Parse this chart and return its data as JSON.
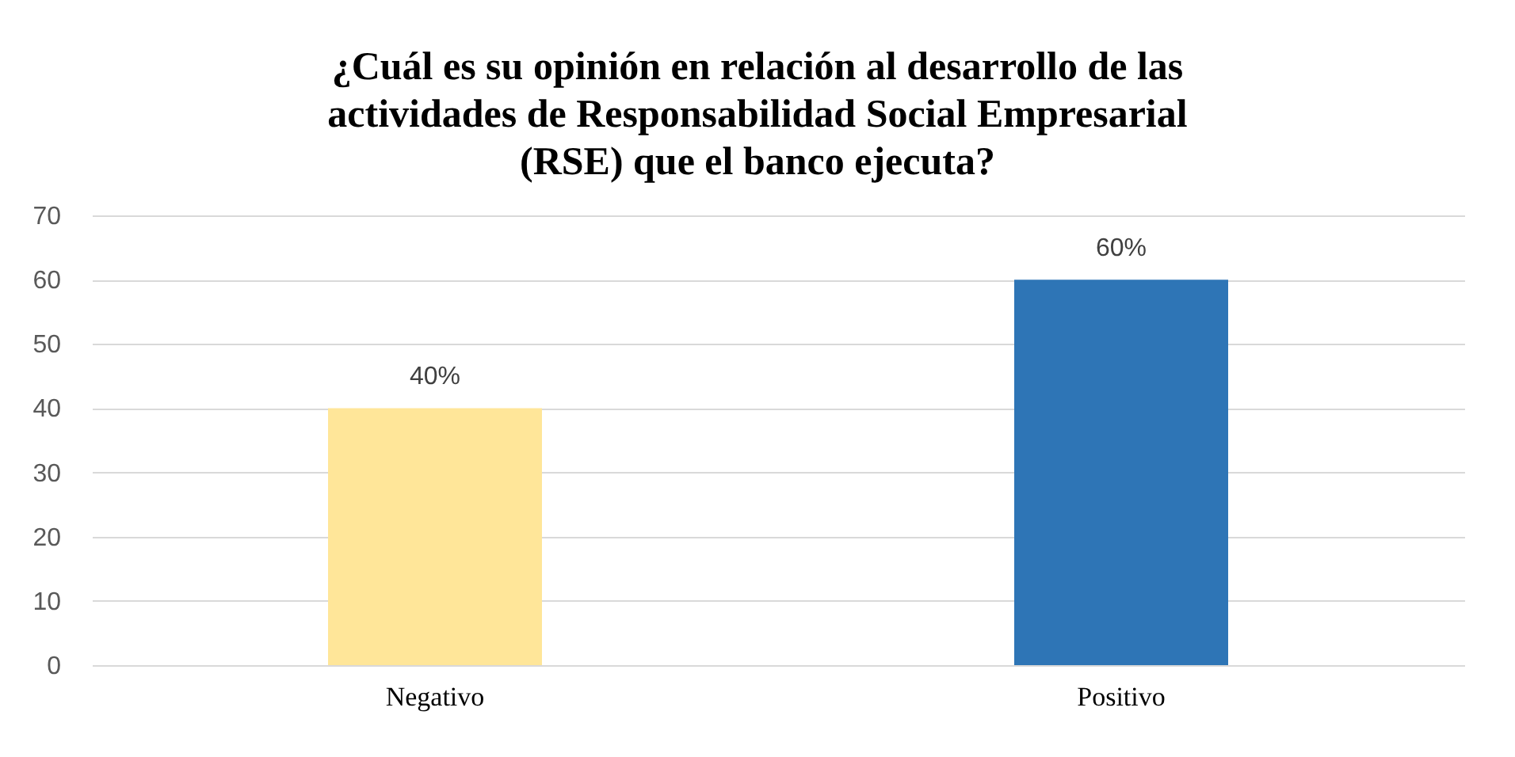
{
  "chart_data": {
    "type": "bar",
    "title": "¿Cuál es su opinión en relación al desarrollo de las actividades de Responsabilidad Social Empresarial (RSE) que el banco ejecuta?",
    "categories": [
      "Negativo",
      "Positivo"
    ],
    "values": [
      40,
      60
    ],
    "colors": [
      "#ffe699",
      "#2e75b6"
    ],
    "value_labels": [
      "40%",
      "60%"
    ],
    "ylim": [
      0,
      70
    ],
    "yticks": [
      0,
      10,
      20,
      30,
      40,
      50,
      60,
      70
    ],
    "grid": "y"
  }
}
